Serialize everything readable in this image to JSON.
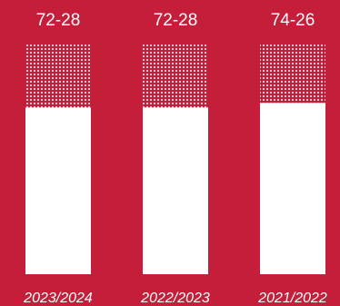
{
  "colors": {
    "background": "#c41e3a",
    "bar": "#ffffff"
  },
  "chart_data": {
    "type": "bar",
    "stacked": true,
    "categories": [
      "2023/2024",
      "2022/2023",
      "2021/2022"
    ],
    "series": [
      {
        "values": [
          72,
          72,
          74
        ],
        "fill": "solid"
      },
      {
        "values": [
          28,
          28,
          26
        ],
        "fill": "dotted"
      }
    ],
    "data_labels": [
      "72-28",
      "72-28",
      "74-26"
    ],
    "ylim": [
      0,
      100
    ],
    "grid": false,
    "legend": "none"
  }
}
